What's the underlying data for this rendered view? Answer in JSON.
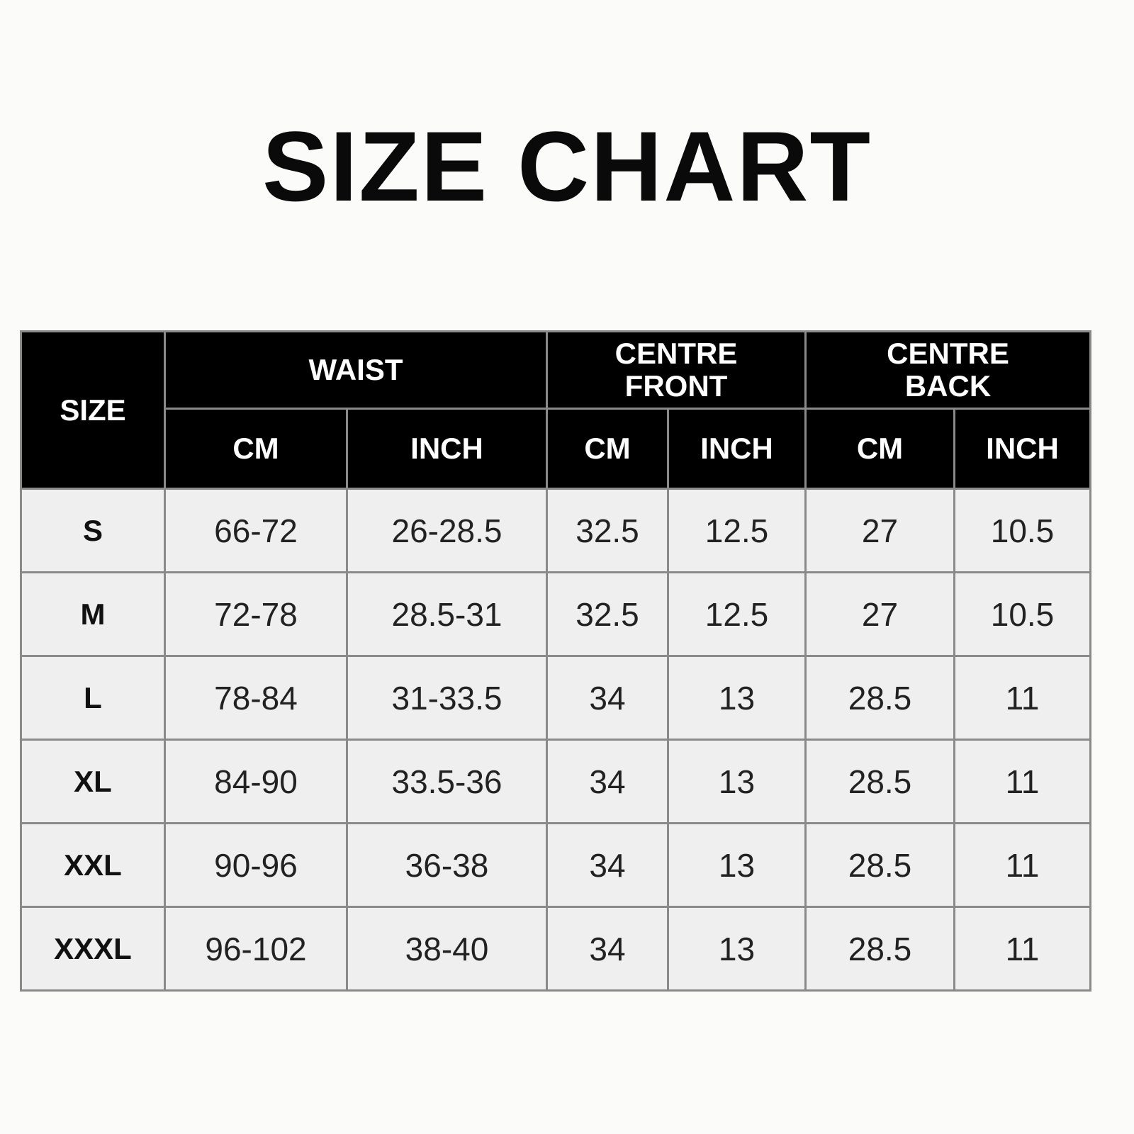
{
  "title": "SIZE CHART",
  "header": {
    "size": "SIZE",
    "groups": [
      "WAIST",
      "CENTRE FRONT",
      "CENTRE BACK"
    ],
    "units": [
      "CM",
      "INCH",
      "CM",
      "INCH",
      "CM",
      "INCH"
    ]
  },
  "rows": [
    {
      "size": "S",
      "values": [
        "66-72",
        "26-28.5",
        "32.5",
        "12.5",
        "27",
        "10.5"
      ]
    },
    {
      "size": "M",
      "values": [
        "72-78",
        "28.5-31",
        "32.5",
        "12.5",
        "27",
        "10.5"
      ]
    },
    {
      "size": "L",
      "values": [
        "78-84",
        "31-33.5",
        "34",
        "13",
        "28.5",
        "11"
      ]
    },
    {
      "size": "XL",
      "values": [
        "84-90",
        "33.5-36",
        "34",
        "13",
        "28.5",
        "11"
      ]
    },
    {
      "size": "XXL",
      "values": [
        "90-96",
        "36-38",
        "34",
        "13",
        "28.5",
        "11"
      ]
    },
    {
      "size": "XXXL",
      "values": [
        "96-102",
        "38-40",
        "34",
        "13",
        "28.5",
        "11"
      ]
    }
  ],
  "colors": {
    "header_bg": "#000000",
    "cell_bg": "#efefef",
    "grid": "#8a8a8a"
  }
}
